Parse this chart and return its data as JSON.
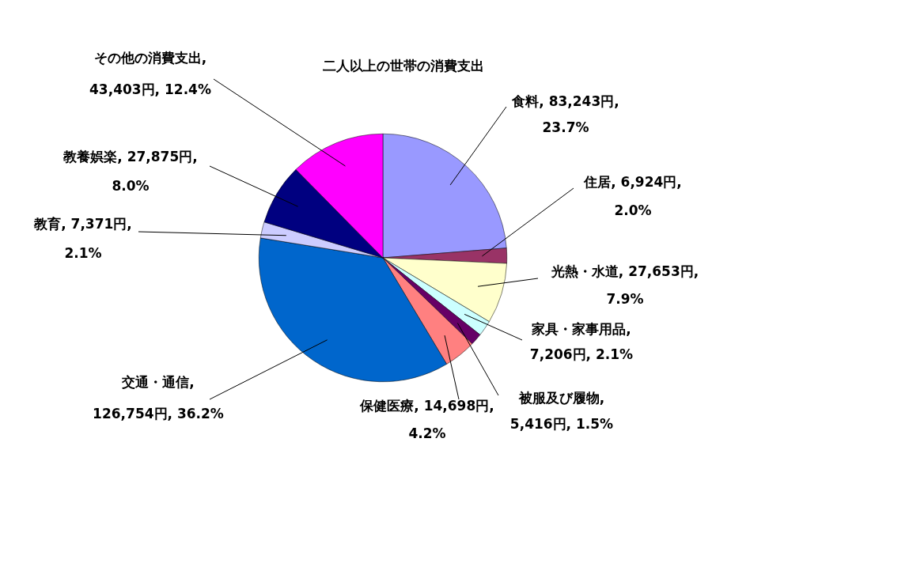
{
  "chart_data": {
    "type": "pie",
    "title": "二人以上の世帯の消費支出",
    "categories": [
      "食料",
      "住居",
      "光熱・水道",
      "家具・家事用品",
      "被服及び履物",
      "保健医療",
      "交通・通信",
      "教育",
      "教養娯楽",
      "その他の消費支出"
    ],
    "values": [
      83243,
      6924,
      27653,
      7206,
      5416,
      14698,
      126754,
      7371,
      27875,
      43403
    ],
    "colors": [
      "#9999ff",
      "#993366",
      "#ffffcc",
      "#ccffff",
      "#660066",
      "#ff8080",
      "#0066cc",
      "#ccccff",
      "#000080",
      "#ff00ff"
    ],
    "value_labels": [
      ", 83,243円,\n23.7%",
      ", 6,924円,\n2.0%",
      ", 27,653円,\n7.9%",
      ",\n7,206円, 2.1%",
      ",\n5,416円, 1.5%",
      ", 14,698円,\n4.2%",
      ",\n126,754円, 36.2%",
      ", 7,371円,\n2.1%",
      ", 27,875円,\n8.0%",
      ",\n43,403円, 12.4%"
    ],
    "legend": false
  }
}
